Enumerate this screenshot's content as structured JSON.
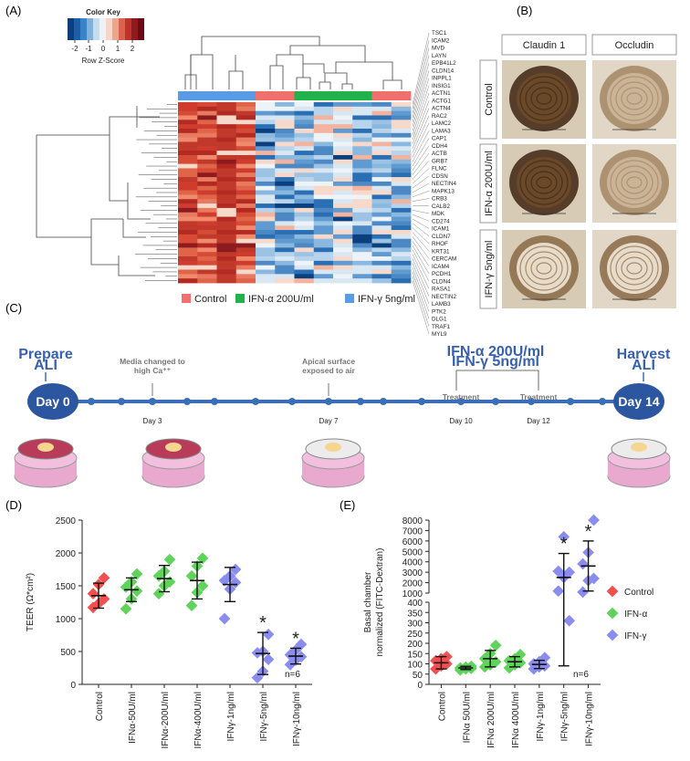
{
  "panels": {
    "a": "(A)",
    "b": "(B)",
    "c": "(C)",
    "d": "(D)",
    "e": "(E)"
  },
  "colorkey": {
    "title": "Color Key",
    "ticks": [
      "-2",
      "-1",
      "0",
      "1",
      "2"
    ],
    "label": "Row Z-Score"
  },
  "heatmap": {
    "genes": [
      "TSC1",
      "ICAM2",
      "MVD",
      "LAYN",
      "EPB41L2",
      "CLDN14",
      "INPPL1",
      "INSIG1",
      "ACTN1",
      "ACTG1",
      "ACTN4",
      "RAC2",
      "LAMC2",
      "LAMA3",
      "CAP1",
      "CDH4",
      "ACTB",
      "GRB7",
      "FLNC",
      "CDSN",
      "NECTIN4",
      "MAPK13",
      "CRB3",
      "CALB2",
      "MDK",
      "CD274",
      "ICAM1",
      "CLDN7",
      "RHOF",
      "KRT31",
      "CERCAM",
      "ICAM4",
      "PCDH1",
      "CLDN4",
      "RASA1",
      "NECTIN2",
      "LAMB3",
      "PTK2",
      "DLG1",
      "TRAF1",
      "MYL9"
    ],
    "legend": [
      {
        "label": "Control",
        "color": "#f0706e"
      },
      {
        "label": "IFN-α 200U/ml",
        "color": "#22b24c"
      },
      {
        "label": "IFN-γ 5ng/ml",
        "color": "#5a9be6"
      }
    ]
  },
  "micro": {
    "cols": [
      "Claudin 1",
      "Occludin"
    ],
    "rows": [
      "Control",
      "IFN-α 200U/ml",
      "IFN-γ 5ng/ml"
    ]
  },
  "timeline": {
    "prepare": "Prepare\nALI",
    "harvest": "Harvest\nALI",
    "start": "Day 0",
    "end": "Day 14",
    "events": [
      {
        "above": "Media changed to\nhigh Ca⁺⁺",
        "below": "Day 3"
      },
      {
        "above": "Apical surface\nexposed to air",
        "below": "Day 7"
      },
      {
        "above": "Treatment",
        "below": "Day 10"
      },
      {
        "above": "Treatment",
        "below": "Day 12"
      }
    ],
    "treatment": "IFN-α 200U/ml\nIFN-γ 5ng/ml"
  },
  "chart_data": [
    {
      "type": "scatter",
      "ylabel": "TEER (Ω*cm²)",
      "ylim": [
        0,
        2500
      ],
      "yticks": [
        0,
        500,
        1000,
        1500,
        2000,
        2500
      ],
      "categories": [
        "Control",
        "IFNα-50U/ml",
        "IFNα-200U/ml",
        "IFNα-400U/ml",
        "IFNγ-1ng/ml",
        "IFNγ-5ng/ml",
        "IFNγ-10ng/ml"
      ],
      "series": [
        {
          "group": "Control",
          "points": [
            1170,
            1230,
            1300,
            1380,
            1520,
            1620
          ],
          "mean": 1350,
          "sd": 190
        },
        {
          "group": "IFN-α",
          "points": [
            1150,
            1300,
            1420,
            1480,
            1560,
            1680
          ],
          "mean": 1440,
          "sd": 180
        },
        {
          "group": "IFN-α",
          "points": [
            1380,
            1500,
            1560,
            1650,
            1720,
            1900
          ],
          "mean": 1610,
          "sd": 200
        },
        {
          "group": "IFN-α",
          "points": [
            1200,
            1400,
            1500,
            1650,
            1800,
            1920
          ],
          "mean": 1580,
          "sd": 280
        },
        {
          "group": "IFN-γ",
          "points": [
            1000,
            1450,
            1550,
            1580,
            1650,
            1750
          ],
          "mean": 1520,
          "sd": 260
        },
        {
          "group": "IFN-γ",
          "points": [
            100,
            200,
            380,
            480,
            500,
            760
          ],
          "mean": 470,
          "sd": 320
        },
        {
          "group": "IFN-γ",
          "points": [
            300,
            370,
            420,
            450,
            520,
            610
          ],
          "mean": 430,
          "sd": 120
        }
      ],
      "stars": [
        5,
        6
      ],
      "note": "n=6"
    },
    {
      "type": "scatter",
      "ylabel": "Basal chamber\nnormalized (FITC-Dextran)",
      "yticks_low": [
        0,
        50,
        100,
        150,
        200,
        250,
        300,
        350,
        400
      ],
      "yticks_high": [
        1000,
        2000,
        3000,
        4000,
        5000,
        6000,
        7000,
        8000
      ],
      "categories": [
        "Control",
        "IFNα 50U/ml",
        "IFNα 200U/ml",
        "IFNα 400U/ml",
        "IFNγ-1ng/ml",
        "IFNγ-5ng/ml",
        "IFNγ-10ng/ml"
      ],
      "series": [
        {
          "group": "Control",
          "points": [
            75,
            90,
            100,
            115,
            125,
            135
          ],
          "mean": 105,
          "sd": 30
        },
        {
          "group": "IFN-α",
          "points": [
            70,
            75,
            78,
            80,
            84,
            88
          ],
          "mean": 80,
          "sd": 8
        },
        {
          "group": "IFN-α",
          "points": [
            85,
            95,
            110,
            125,
            150,
            190
          ],
          "mean": 125,
          "sd": 40
        },
        {
          "group": "IFN-α",
          "points": [
            80,
            95,
            105,
            115,
            125,
            145
          ],
          "mean": 110,
          "sd": 25
        },
        {
          "group": "IFN-γ",
          "points": [
            75,
            85,
            90,
            100,
            110,
            130
          ],
          "mean": 97,
          "sd": 20
        },
        {
          "group": "IFN-γ",
          "points": [
            1200,
            2500,
            3000,
            3100,
            6400,
            310
          ],
          "mean": 2500,
          "sd": 2300
        },
        {
          "group": "IFN-γ",
          "points": [
            1100,
            2200,
            2400,
            3800,
            4900,
            8000
          ],
          "mean": 3600,
          "sd": 2400
        }
      ],
      "stars": [
        5,
        6
      ],
      "note": "n=6",
      "legend": [
        {
          "label": "Control",
          "color": "#f0504f"
        },
        {
          "label": "IFN-α",
          "color": "#5fd35a"
        },
        {
          "label": "IFN-γ",
          "color": "#8a8cf0"
        }
      ]
    }
  ]
}
